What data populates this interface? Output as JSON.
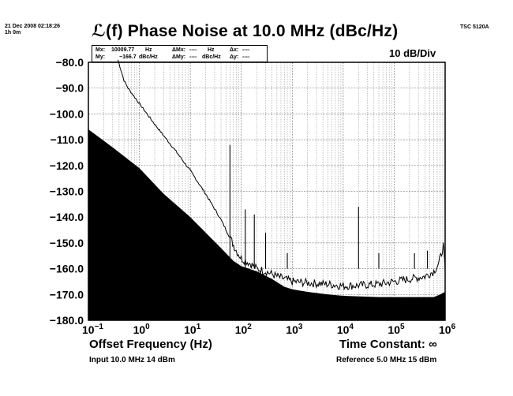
{
  "header": {
    "date_line1": "21 Dec 2008 02:18:26",
    "date_line2": "1h 0m",
    "instrument": "TSC 5120A",
    "title": "ℒ(f) Phase Noise at 10.0 MHz (dBc/Hz)",
    "scale": "10 dB/Div"
  },
  "marker": {
    "mx_label": "Mx:",
    "mx_value": "10009.77",
    "mx_unit": "Hz",
    "my_label": "My:",
    "my_value": "−166.7",
    "my_unit": "dBc/Hz",
    "dmx_label": "ΔMx:",
    "dmx_value": "----",
    "dmx_unit": "Hz",
    "dmy_label": "ΔMy:",
    "dmy_value": "----",
    "dmy_unit": "dBc/Hz",
    "dx_label": "Δx:",
    "dx_value": "----",
    "dy_label": "Δy:",
    "dy_value": "----"
  },
  "footer": {
    "input": "Input 10.0 MHz 14 dBm",
    "reference": "Reference 5.0 MHz 15 dBm",
    "time_constant": "Time Constant: ∞"
  },
  "chart_data": {
    "type": "line",
    "title": "ℒ(f) Phase Noise at 10.0 MHz (dBc/Hz)",
    "xlabel": "Offset Frequency (Hz)",
    "ylabel": "",
    "x_scale": "log",
    "xlim": [
      0.1,
      1000000
    ],
    "ylim": [
      -180,
      -80
    ],
    "grid": true,
    "x_ticks": [
      {
        "base": "10",
        "exp": "−1",
        "value": 0.1
      },
      {
        "base": "10",
        "exp": "0",
        "value": 1
      },
      {
        "base": "10",
        "exp": "1",
        "value": 10
      },
      {
        "base": "10",
        "exp": "2",
        "value": 100
      },
      {
        "base": "10",
        "exp": "3",
        "value": 1000
      },
      {
        "base": "10",
        "exp": "4",
        "value": 10000
      },
      {
        "base": "10",
        "exp": "5",
        "value": 100000
      },
      {
        "base": "10",
        "exp": "6",
        "value": 1000000
      }
    ],
    "y_ticks": [
      "−80.0",
      "−90.0",
      "−100.0",
      "−110.0",
      "−120.0",
      "−130.0",
      "−140.0",
      "−150.0",
      "−160.0",
      "−170.0",
      "−180.0"
    ],
    "y_tick_values": [
      -80,
      -90,
      -100,
      -110,
      -120,
      -130,
      -140,
      -150,
      -160,
      -170,
      -180
    ],
    "series": [
      {
        "role": "measured phase noise (line)",
        "color": "#000000",
        "points": [
          [
            0.38,
            -79
          ],
          [
            0.45,
            -84
          ],
          [
            0.5,
            -87
          ],
          [
            0.6,
            -90
          ],
          [
            1,
            -96
          ],
          [
            2,
            -104
          ],
          [
            5,
            -114
          ],
          [
            10,
            -122
          ],
          [
            20,
            -131
          ],
          [
            40,
            -141
          ],
          [
            60,
            -148
          ],
          [
            80,
            -153
          ],
          [
            100,
            -156
          ],
          [
            150,
            -158
          ],
          [
            200,
            -160
          ],
          [
            300,
            -161
          ],
          [
            500,
            -163
          ],
          [
            1000,
            -165
          ],
          [
            2000,
            -165.5
          ],
          [
            5000,
            -166
          ],
          [
            10000,
            -166.7
          ],
          [
            20000,
            -166.5
          ],
          [
            50000,
            -166
          ],
          [
            100000,
            -165
          ],
          [
            200000,
            -164
          ],
          [
            400000,
            -163
          ],
          [
            600000,
            -161
          ],
          [
            750000,
            -158
          ],
          [
            850000,
            -154
          ],
          [
            920000,
            -151
          ],
          [
            980000,
            -158
          ],
          [
            1000000,
            -162
          ]
        ],
        "spurs": [
          [
            60,
            -112
          ],
          [
            120,
            -137
          ],
          [
            180,
            -139
          ],
          [
            300,
            -146
          ],
          [
            800,
            -154
          ],
          [
            20000,
            -136
          ],
          [
            50000,
            -154
          ],
          [
            250000,
            -154
          ],
          [
            450000,
            -153
          ]
        ],
        "spur_floor": -160
      },
      {
        "role": "measurement floor (filled area)",
        "color": "#000000",
        "points": [
          [
            0.1,
            -106
          ],
          [
            0.3,
            -113
          ],
          [
            1,
            -121
          ],
          [
            3,
            -131
          ],
          [
            10,
            -140
          ],
          [
            20,
            -146
          ],
          [
            40,
            -152
          ],
          [
            70,
            -157
          ],
          [
            100,
            -159
          ],
          [
            200,
            -161
          ],
          [
            400,
            -164
          ],
          [
            700,
            -167
          ],
          [
            1000,
            -168
          ],
          [
            2000,
            -169
          ],
          [
            5000,
            -170
          ],
          [
            10000,
            -170.5
          ],
          [
            50000,
            -171
          ],
          [
            100000,
            -171
          ],
          [
            300000,
            -171
          ],
          [
            600000,
            -171
          ],
          [
            800000,
            -170
          ],
          [
            1000000,
            -169
          ]
        ]
      }
    ]
  }
}
